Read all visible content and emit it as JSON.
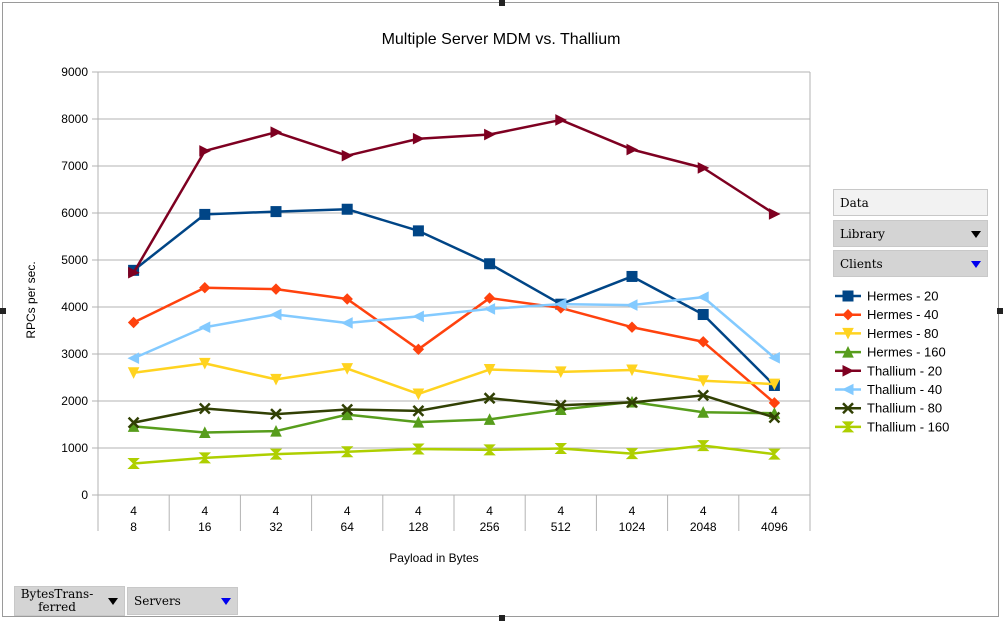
{
  "chart_data": {
    "type": "line",
    "title": "Multiple Server MDM vs. Thallium",
    "xlabel": "Payload in Bytes",
    "ylabel": "RPCs per sec.",
    "ylim": [
      0,
      9000
    ],
    "yticks": [
      0,
      1000,
      2000,
      3000,
      4000,
      5000,
      6000,
      7000,
      8000,
      9000
    ],
    "grid": true,
    "legend_position": "right",
    "categories": [
      {
        "top": "4",
        "bottom": "8"
      },
      {
        "top": "4",
        "bottom": "16"
      },
      {
        "top": "4",
        "bottom": "32"
      },
      {
        "top": "4",
        "bottom": "64"
      },
      {
        "top": "4",
        "bottom": "128"
      },
      {
        "top": "4",
        "bottom": "256"
      },
      {
        "top": "4",
        "bottom": "512"
      },
      {
        "top": "4",
        "bottom": "1024"
      },
      {
        "top": "4",
        "bottom": "2048"
      },
      {
        "top": "4",
        "bottom": "4096"
      }
    ],
    "series": [
      {
        "name": "Hermes - 20",
        "color": "#004586",
        "marker": "square",
        "values": [
          4780,
          5970,
          6030,
          6080,
          5620,
          4920,
          4060,
          4650,
          3840,
          2330
        ]
      },
      {
        "name": "Hermes - 40",
        "color": "#ff420e",
        "marker": "diamond",
        "values": [
          3670,
          4410,
          4380,
          4170,
          3100,
          4190,
          3980,
          3570,
          3260,
          1960
        ]
      },
      {
        "name": "Hermes - 80",
        "color": "#ffd320",
        "marker": "triangle-down",
        "values": [
          2600,
          2800,
          2460,
          2690,
          2150,
          2670,
          2620,
          2660,
          2430,
          2360
        ]
      },
      {
        "name": "Hermes - 160",
        "color": "#579d1c",
        "marker": "triangle-up",
        "values": [
          1460,
          1330,
          1360,
          1710,
          1550,
          1610,
          1820,
          1980,
          1760,
          1740
        ]
      },
      {
        "name": "Thallium - 20",
        "color": "#7e0021",
        "marker": "triangle-right",
        "values": [
          4730,
          7320,
          7720,
          7220,
          7580,
          7670,
          7980,
          7350,
          6960,
          5980
        ]
      },
      {
        "name": "Thallium - 40",
        "color": "#83caff",
        "marker": "triangle-left",
        "values": [
          2910,
          3570,
          3840,
          3660,
          3800,
          3960,
          4060,
          4040,
          4210,
          2920
        ]
      },
      {
        "name": "Thallium - 80",
        "color": "#314004",
        "marker": "x",
        "values": [
          1540,
          1840,
          1720,
          1820,
          1790,
          2060,
          1910,
          1970,
          2120,
          1650
        ]
      },
      {
        "name": "Thallium - 160",
        "color": "#aecf00",
        "marker": "hourglass",
        "values": [
          670,
          790,
          870,
          920,
          980,
          960,
          990,
          880,
          1050,
          870
        ]
      }
    ]
  },
  "fields": {
    "data": "Data",
    "library": "Library",
    "clients": "Clients",
    "bytes_transferred": "BytesTrans-ferred",
    "servers": "Servers"
  }
}
